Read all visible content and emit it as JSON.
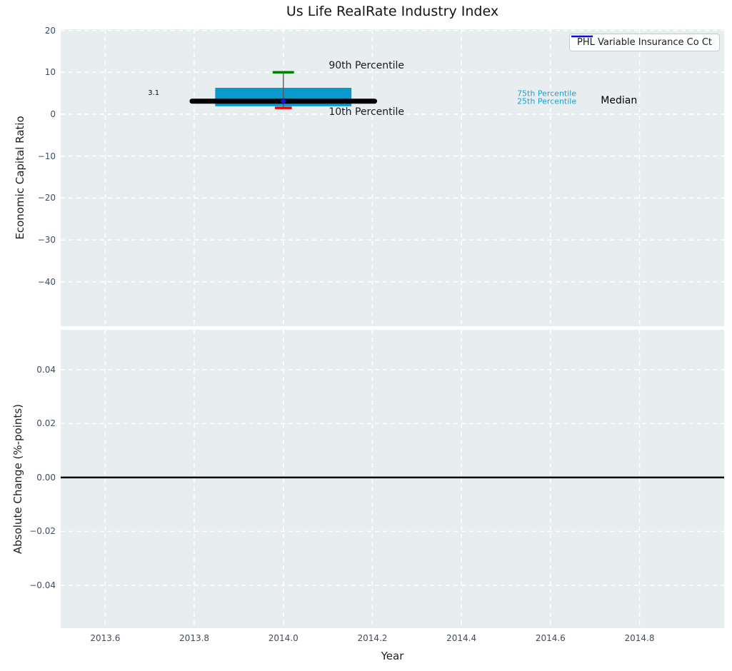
{
  "title": "Us Life RealRate Industry Index",
  "legend": {
    "label": "PHL Variable Insurance Co Ct",
    "color": "#0909ee"
  },
  "style": {
    "figure_bg": "#ffffff",
    "plot_bg": "#e8eef0",
    "grid_color": "#ffffff",
    "tick_color": "#3f4c63",
    "label_color": "#1f1f1f"
  },
  "chart_data": [
    {
      "type": "box",
      "subplot": "top",
      "title": "Us Life RealRate Industry Index",
      "ylabel": "Economic Capital Ratio",
      "xlim": [
        2013.5,
        2014.99
      ],
      "ylim": [
        -50.6,
        20.27
      ],
      "grid": true,
      "legend_position": "upper right",
      "xticks": [
        2013.6,
        2013.8,
        2014.0,
        2014.2,
        2014.4,
        2014.6,
        2014.8
      ],
      "yticks": [
        20,
        10,
        0,
        -10,
        -20,
        -30,
        -40
      ],
      "ytick_labels": [
        "20",
        "10",
        "0",
        "−10",
        "−20",
        "−30",
        "−40"
      ],
      "series": [
        {
          "name": "PHL Variable Insurance Co Ct",
          "x": 2014.0,
          "value": 3.1,
          "color": "#1a10d8"
        }
      ],
      "box": {
        "x": 2014.0,
        "p90": 10.0,
        "p75": 6.3,
        "median": 3.1,
        "p25": 1.9,
        "p10": 1.5,
        "company_value": 3.1,
        "box_half_width": 0.153,
        "median_half_width": 0.205,
        "cap_half_width_p90": 0.024,
        "cap_half_width_p10": 0.019,
        "colors": {
          "box": "#089acc",
          "median": "#000000",
          "p90_cap": "#008000",
          "p10_cap": "#ee0000",
          "whisker": "#5a5a5a"
        }
      },
      "annotations": [
        {
          "id": "p90-percentile-label",
          "text": "90th Percentile",
          "x": 2014.102,
          "y": 11.6,
          "color": "#1a1a1a",
          "size": 14
        },
        {
          "id": "p10-percentile-label",
          "text": "10th Percentile",
          "x": 2014.102,
          "y": 0.45,
          "color": "#1a1a1a",
          "size": 14
        },
        {
          "id": "company-value-label",
          "text": "3.1",
          "x": 2013.696,
          "y": 4.9,
          "color": "#111111",
          "size": 10
        },
        {
          "id": "p75-percentile-label",
          "text": "75th Percentile",
          "x": 2014.525,
          "y": 5.0,
          "color": "#1fa0cf",
          "size": 11
        },
        {
          "id": "p25-percentile-label",
          "text": "25th Percentile",
          "x": 2014.525,
          "y": 3.1,
          "color": "#1fa0cf",
          "size": 11
        },
        {
          "id": "median-label",
          "text": "Median",
          "x": 2014.713,
          "y": 3.2,
          "color": "#000000",
          "size": 14
        }
      ]
    },
    {
      "type": "line",
      "subplot": "bottom",
      "ylabel": "Absolute Change (%-points)",
      "xlabel": "Year",
      "xlim": [
        2013.5,
        2014.99
      ],
      "ylim": [
        -0.0559,
        0.0548
      ],
      "grid": true,
      "xticks": [
        2013.6,
        2013.8,
        2014.0,
        2014.2,
        2014.4,
        2014.6,
        2014.8
      ],
      "xtick_labels": [
        "2013.6",
        "2013.8",
        "2014.0",
        "2014.2",
        "2014.4",
        "2014.6",
        "2014.8"
      ],
      "yticks": [
        0.04,
        0.02,
        0.0,
        -0.02,
        -0.04
      ],
      "ytick_labels": [
        "0.04",
        "0.02",
        "0.00",
        "−0.02",
        "−0.04"
      ],
      "zero_line": {
        "y": 0.0,
        "color": "#000000"
      }
    }
  ]
}
